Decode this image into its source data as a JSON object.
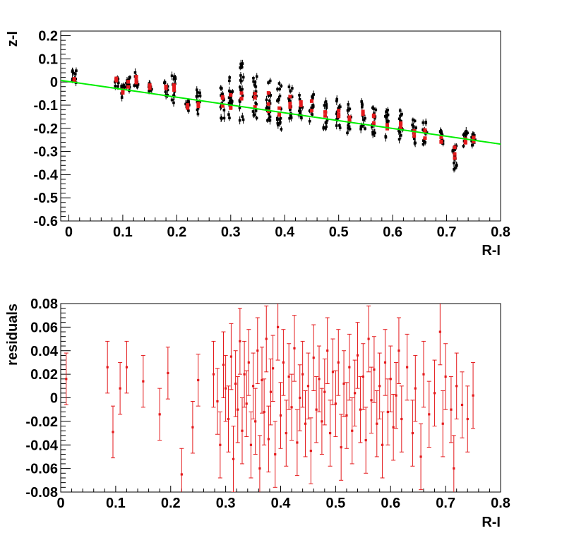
{
  "chart_data": [
    {
      "type": "scatter",
      "title": "",
      "xlabel": "R-I",
      "ylabel": "z-I",
      "xlim": [
        -0.015,
        0.8
      ],
      "ylim": [
        -0.6,
        0.22
      ],
      "x_ticks": [
        0,
        0.1,
        0.2,
        0.3,
        0.4,
        0.5,
        0.6,
        0.7,
        0.8
      ],
      "x_tick_labels": [
        "0",
        "0.1",
        "0.2",
        "0.3",
        "0.4",
        "0.5",
        "0.6",
        "0.7",
        "0.8"
      ],
      "y_ticks": [
        0.2,
        0.1,
        0,
        -0.1,
        -0.2,
        -0.3,
        -0.4,
        -0.5,
        -0.6
      ],
      "y_tick_labels": [
        "0.2",
        "0.1",
        "0",
        "-0.1",
        "-0.2",
        "-0.3",
        "-0.4",
        "-0.5",
        "-0.6"
      ],
      "grid": false,
      "legend": "none",
      "colors": {
        "points": "#000000",
        "means": "#e41a1c",
        "fit": "#00ee00"
      },
      "fit_line": {
        "x": [
          -0.015,
          0.8
        ],
        "y": [
          0.007,
          -0.268
        ]
      },
      "column_clusters": [
        {
          "x": 0.01,
          "ymin": -0.02,
          "ymax": 0.05
        },
        {
          "x": 0.088,
          "ymin": -0.03,
          "ymax": 0.04
        },
        {
          "x": 0.1,
          "ymin": -0.07,
          "ymax": -0.01
        },
        {
          "x": 0.11,
          "ymin": -0.04,
          "ymax": 0.02
        },
        {
          "x": 0.125,
          "ymin": -0.03,
          "ymax": 0.05
        },
        {
          "x": 0.15,
          "ymin": -0.04,
          "ymax": 0.0
        },
        {
          "x": 0.18,
          "ymin": -0.06,
          "ymax": 0.0
        },
        {
          "x": 0.195,
          "ymin": -0.09,
          "ymax": 0.03
        },
        {
          "x": 0.22,
          "ymin": -0.13,
          "ymax": -0.08
        },
        {
          "x": 0.24,
          "ymin": -0.14,
          "ymax": -0.03
        },
        {
          "x": 0.285,
          "ymin": -0.16,
          "ymax": -0.02
        },
        {
          "x": 0.3,
          "ymin": -0.18,
          "ymax": 0.02
        },
        {
          "x": 0.32,
          "ymin": -0.2,
          "ymax": 0.08
        },
        {
          "x": 0.345,
          "ymin": -0.17,
          "ymax": 0.03
        },
        {
          "x": 0.37,
          "ymin": -0.19,
          "ymax": 0.02
        },
        {
          "x": 0.39,
          "ymin": -0.21,
          "ymax": 0.0
        },
        {
          "x": 0.41,
          "ymin": -0.16,
          "ymax": -0.02
        },
        {
          "x": 0.43,
          "ymin": -0.16,
          "ymax": -0.05
        },
        {
          "x": 0.45,
          "ymin": -0.17,
          "ymax": -0.04
        },
        {
          "x": 0.475,
          "ymin": -0.2,
          "ymax": -0.07
        },
        {
          "x": 0.5,
          "ymin": -0.21,
          "ymax": -0.07
        },
        {
          "x": 0.52,
          "ymin": -0.22,
          "ymax": -0.08
        },
        {
          "x": 0.545,
          "ymin": -0.21,
          "ymax": -0.07
        },
        {
          "x": 0.565,
          "ymin": -0.23,
          "ymax": -0.1
        },
        {
          "x": 0.59,
          "ymin": -0.24,
          "ymax": -0.12
        },
        {
          "x": 0.615,
          "ymin": -0.25,
          "ymax": -0.11
        },
        {
          "x": 0.64,
          "ymin": -0.27,
          "ymax": -0.16
        },
        {
          "x": 0.66,
          "ymin": -0.29,
          "ymax": -0.17
        },
        {
          "x": 0.69,
          "ymin": -0.29,
          "ymax": -0.2
        },
        {
          "x": 0.715,
          "ymin": -0.38,
          "ymax": -0.22
        },
        {
          "x": 0.735,
          "ymin": -0.29,
          "ymax": -0.21
        },
        {
          "x": 0.75,
          "ymin": -0.28,
          "ymax": -0.22
        }
      ]
    },
    {
      "type": "scatter",
      "title": "",
      "xlabel": "R-I",
      "ylabel": "residuals",
      "xlim": [
        0,
        0.8
      ],
      "ylim": [
        -0.08,
        0.08
      ],
      "x_ticks": [
        0,
        0.1,
        0.2,
        0.3,
        0.4,
        0.5,
        0.6,
        0.7,
        0.8
      ],
      "x_tick_labels": [
        "0",
        "0.1",
        "0.2",
        "0.3",
        "0.4",
        "0.5",
        "0.6",
        "0.7",
        "0.8"
      ],
      "y_ticks": [
        0.08,
        0.06,
        0.04,
        0.02,
        0,
        -0.02,
        -0.04,
        -0.06,
        -0.08
      ],
      "y_tick_labels": [
        "0.08",
        "0.06",
        "0.04",
        "0.02",
        "0",
        "-0.02",
        "-0.04",
        "-0.06",
        "-0.08"
      ],
      "grid": false,
      "legend": "none",
      "colors": {
        "points": "#e41a1c"
      },
      "points": [
        {
          "x": 0.01,
          "y": 0.016,
          "err": 0.022
        },
        {
          "x": 0.085,
          "y": 0.026,
          "err": 0.022
        },
        {
          "x": 0.095,
          "y": -0.029,
          "err": 0.022
        },
        {
          "x": 0.108,
          "y": 0.008,
          "err": 0.022
        },
        {
          "x": 0.12,
          "y": 0.026,
          "err": 0.022
        },
        {
          "x": 0.15,
          "y": 0.014,
          "err": 0.022
        },
        {
          "x": 0.18,
          "y": -0.014,
          "err": 0.022
        },
        {
          "x": 0.195,
          "y": 0.021,
          "err": 0.022
        },
        {
          "x": 0.22,
          "y": -0.065,
          "err": 0.022
        },
        {
          "x": 0.24,
          "y": -0.025,
          "err": 0.022
        },
        {
          "x": 0.25,
          "y": 0.015,
          "err": 0.022
        },
        {
          "x": 0.278,
          "y": 0.02,
          "err": 0.028
        },
        {
          "x": 0.285,
          "y": -0.003,
          "err": 0.028
        },
        {
          "x": 0.29,
          "y": -0.04,
          "err": 0.028
        },
        {
          "x": 0.296,
          "y": 0.028,
          "err": 0.028
        },
        {
          "x": 0.3,
          "y": 0.008,
          "err": 0.028
        },
        {
          "x": 0.305,
          "y": -0.018,
          "err": 0.028
        },
        {
          "x": 0.31,
          "y": 0.035,
          "err": 0.028
        },
        {
          "x": 0.314,
          "y": -0.052,
          "err": 0.028
        },
        {
          "x": 0.318,
          "y": 0.012,
          "err": 0.028
        },
        {
          "x": 0.322,
          "y": -0.01,
          "err": 0.028
        },
        {
          "x": 0.326,
          "y": 0.048,
          "err": 0.028
        },
        {
          "x": 0.33,
          "y": -0.028,
          "err": 0.028
        },
        {
          "x": 0.334,
          "y": 0.02,
          "err": 0.028
        },
        {
          "x": 0.338,
          "y": -0.005,
          "err": 0.028
        },
        {
          "x": 0.342,
          "y": 0.03,
          "err": 0.028
        },
        {
          "x": 0.346,
          "y": -0.04,
          "err": 0.028
        },
        {
          "x": 0.35,
          "y": 0.01,
          "err": 0.028
        },
        {
          "x": 0.354,
          "y": -0.02,
          "err": 0.028
        },
        {
          "x": 0.358,
          "y": 0.04,
          "err": 0.028
        },
        {
          "x": 0.362,
          "y": -0.06,
          "err": 0.028
        },
        {
          "x": 0.366,
          "y": 0.015,
          "err": 0.028
        },
        {
          "x": 0.37,
          "y": -0.012,
          "err": 0.028
        },
        {
          "x": 0.374,
          "y": 0.05,
          "err": 0.028
        },
        {
          "x": 0.378,
          "y": -0.035,
          "err": 0.028
        },
        {
          "x": 0.382,
          "y": 0.005,
          "err": 0.028
        },
        {
          "x": 0.386,
          "y": 0.025,
          "err": 0.028
        },
        {
          "x": 0.39,
          "y": -0.048,
          "err": 0.028
        },
        {
          "x": 0.395,
          "y": 0.06,
          "err": 0.028
        },
        {
          "x": 0.4,
          "y": -0.015,
          "err": 0.028
        },
        {
          "x": 0.405,
          "y": 0.03,
          "err": 0.028
        },
        {
          "x": 0.41,
          "y": -0.03,
          "err": 0.028
        },
        {
          "x": 0.415,
          "y": 0.018,
          "err": 0.028
        },
        {
          "x": 0.42,
          "y": -0.008,
          "err": 0.028
        },
        {
          "x": 0.425,
          "y": 0.042,
          "err": 0.028
        },
        {
          "x": 0.43,
          "y": -0.038,
          "err": 0.028
        },
        {
          "x": 0.435,
          "y": 0.0,
          "err": 0.028
        },
        {
          "x": 0.44,
          "y": 0.02,
          "err": 0.028
        },
        {
          "x": 0.445,
          "y": -0.022,
          "err": 0.028
        },
        {
          "x": 0.45,
          "y": 0.01,
          "err": 0.028
        },
        {
          "x": 0.455,
          "y": -0.045,
          "err": 0.028
        },
        {
          "x": 0.46,
          "y": 0.034,
          "err": 0.028
        },
        {
          "x": 0.465,
          "y": -0.01,
          "err": 0.028
        },
        {
          "x": 0.47,
          "y": 0.016,
          "err": 0.028
        },
        {
          "x": 0.475,
          "y": -0.02,
          "err": 0.028
        },
        {
          "x": 0.48,
          "y": 0.005,
          "err": 0.028
        },
        {
          "x": 0.485,
          "y": 0.04,
          "err": 0.028
        },
        {
          "x": 0.49,
          "y": -0.03,
          "err": 0.028
        },
        {
          "x": 0.495,
          "y": 0.022,
          "err": 0.028
        },
        {
          "x": 0.5,
          "y": -0.005,
          "err": 0.028
        },
        {
          "x": 0.505,
          "y": 0.03,
          "err": 0.028
        },
        {
          "x": 0.51,
          "y": -0.042,
          "err": 0.028
        },
        {
          "x": 0.515,
          "y": 0.012,
          "err": 0.028
        },
        {
          "x": 0.52,
          "y": -0.015,
          "err": 0.028
        },
        {
          "x": 0.525,
          "y": 0.026,
          "err": 0.028
        },
        {
          "x": 0.53,
          "y": -0.028,
          "err": 0.028
        },
        {
          "x": 0.535,
          "y": 0.004,
          "err": 0.028
        },
        {
          "x": 0.54,
          "y": 0.036,
          "err": 0.028
        },
        {
          "x": 0.545,
          "y": -0.01,
          "err": 0.028
        },
        {
          "x": 0.55,
          "y": 0.018,
          "err": 0.028
        },
        {
          "x": 0.555,
          "y": -0.036,
          "err": 0.028
        },
        {
          "x": 0.56,
          "y": 0.05,
          "err": 0.028
        },
        {
          "x": 0.565,
          "y": -0.002,
          "err": 0.028
        },
        {
          "x": 0.57,
          "y": 0.024,
          "err": 0.028
        },
        {
          "x": 0.575,
          "y": -0.022,
          "err": 0.028
        },
        {
          "x": 0.58,
          "y": 0.01,
          "err": 0.028
        },
        {
          "x": 0.585,
          "y": -0.04,
          "err": 0.028
        },
        {
          "x": 0.59,
          "y": 0.03,
          "err": 0.028
        },
        {
          "x": 0.595,
          "y": -0.012,
          "err": 0.028
        },
        {
          "x": 0.6,
          "y": 0.016,
          "err": 0.028
        },
        {
          "x": 0.605,
          "y": -0.025,
          "err": 0.028
        },
        {
          "x": 0.61,
          "y": 0.002,
          "err": 0.028
        },
        {
          "x": 0.615,
          "y": 0.04,
          "err": 0.028
        },
        {
          "x": 0.62,
          "y": -0.018,
          "err": 0.028
        },
        {
          "x": 0.63,
          "y": 0.026,
          "err": 0.028
        },
        {
          "x": 0.64,
          "y": -0.03,
          "err": 0.028
        },
        {
          "x": 0.645,
          "y": 0.008,
          "err": 0.028
        },
        {
          "x": 0.655,
          "y": -0.05,
          "err": 0.028
        },
        {
          "x": 0.66,
          "y": 0.02,
          "err": 0.028
        },
        {
          "x": 0.67,
          "y": -0.014,
          "err": 0.028
        },
        {
          "x": 0.68,
          "y": 0.004,
          "err": 0.028
        },
        {
          "x": 0.69,
          "y": 0.056,
          "err": 0.028
        },
        {
          "x": 0.695,
          "y": -0.022,
          "err": 0.028
        },
        {
          "x": 0.7,
          "y": 0.018,
          "err": 0.028
        },
        {
          "x": 0.71,
          "y": -0.01,
          "err": 0.028
        },
        {
          "x": 0.715,
          "y": -0.06,
          "err": 0.028
        },
        {
          "x": 0.72,
          "y": 0.01,
          "err": 0.028
        },
        {
          "x": 0.73,
          "y": -0.006,
          "err": 0.028
        },
        {
          "x": 0.74,
          "y": -0.018,
          "err": 0.028
        },
        {
          "x": 0.75,
          "y": 0.002,
          "err": 0.028
        }
      ]
    }
  ]
}
